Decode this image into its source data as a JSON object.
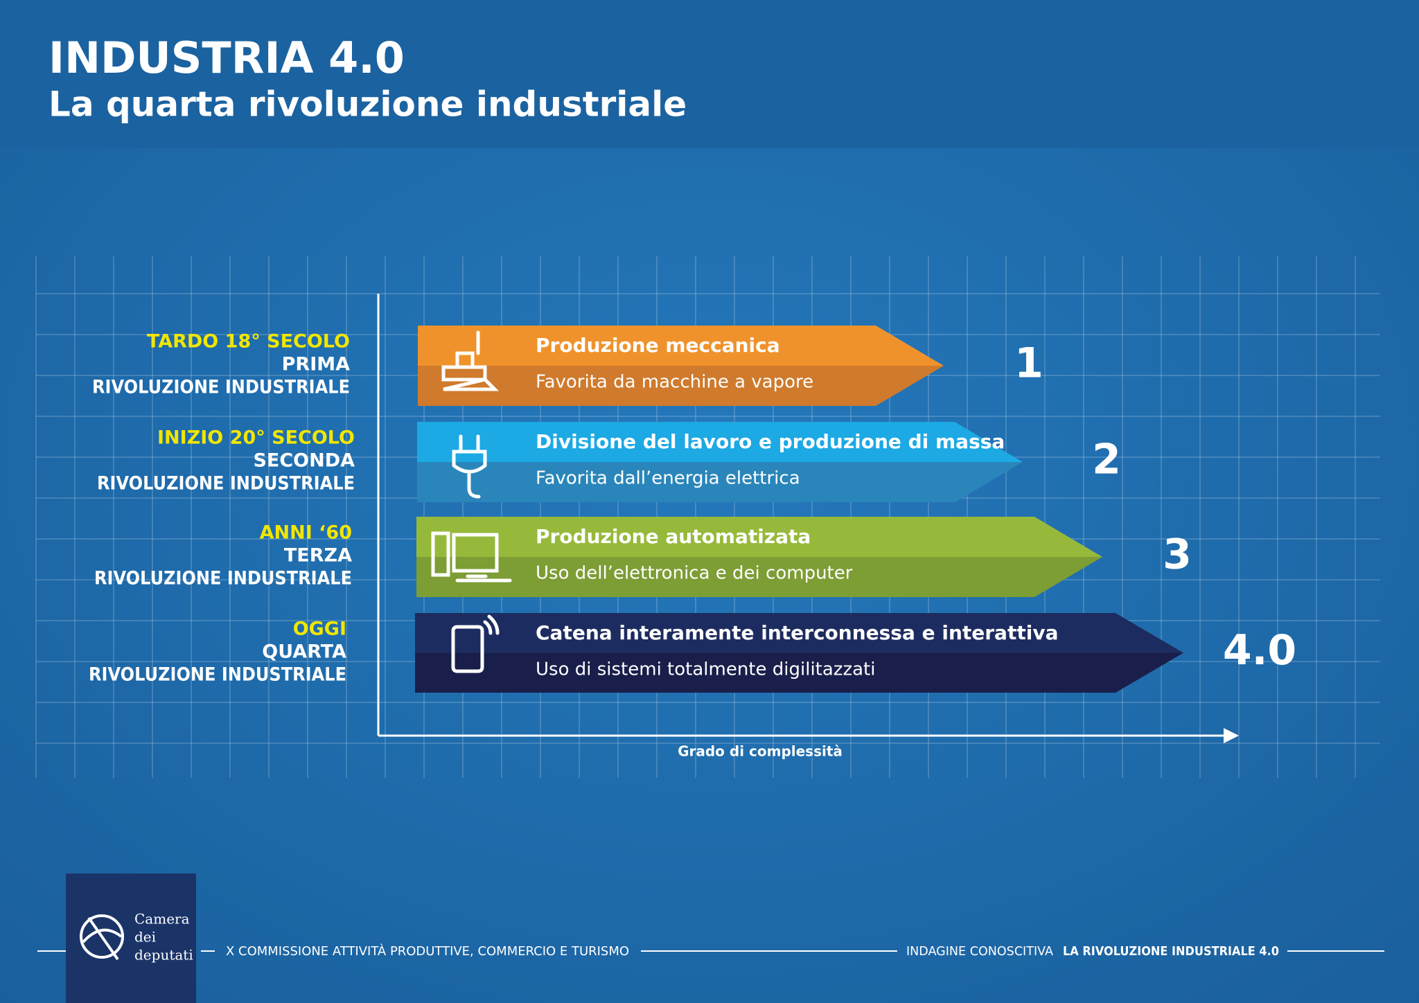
{
  "header": {
    "title": "INDUSTRIA 4.0",
    "subtitle": "La quarta rivoluzione industriale"
  },
  "rows": [
    {
      "era": "TARDO 18° SECOLO",
      "ordinal": "PRIMA",
      "revolution": "RIVOLUZIONE INDUSTRIALE",
      "heading": "Produzione meccanica",
      "description": "Favorita da macchine a vapore",
      "number": "1"
    },
    {
      "era": "INIZIO 20° SECOLO",
      "ordinal": "SECONDA",
      "revolution": "RIVOLUZIONE INDUSTRIALE",
      "heading": "Divisione del lavoro e produzione di massa",
      "description": "Favorita dall’energia elettrica",
      "number": "2"
    },
    {
      "era": "ANNI ‘60",
      "ordinal": "TERZA",
      "revolution": "RIVOLUZIONE INDUSTRIALE",
      "heading": "Produzione automatizata",
      "description": "Uso dell’elettronica e dei computer",
      "number": "3"
    },
    {
      "era": "OGGI",
      "ordinal": "QUARTA",
      "revolution": "RIVOLUZIONE INDUSTRIALE",
      "heading": "Catena interamente interconnessa e interattiva",
      "description": "Uso di sistemi totalmente digilitazzati",
      "number": "4.0"
    }
  ],
  "axis_label": "Grado di complessità",
  "footer": {
    "logo": [
      "Camera",
      "dei",
      "deputati"
    ],
    "commission": "X COMMISSIONE ATTIVITÀ PRODUTTIVE, COMMERCIO E TURISMO",
    "survey_label": "INDAGINE CONOSCITIVA",
    "survey_title": "LA RIVOLUZIONE INDUSTRIALE 4.0"
  }
}
